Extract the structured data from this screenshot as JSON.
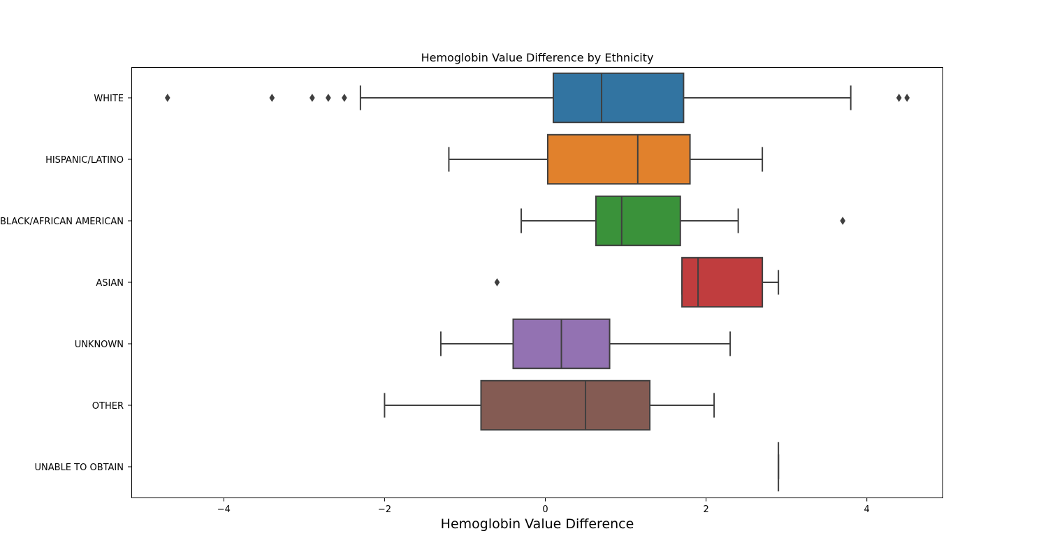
{
  "chart_data": {
    "type": "box",
    "orientation": "horizontal",
    "title": "Hemoglobin Value Difference by Ethnicity",
    "xlabel": "Hemoglobin Value Difference",
    "ylabel": "",
    "xlim": [
      -5.15,
      4.95
    ],
    "xticks": [
      -4,
      -2,
      0,
      2,
      4
    ],
    "xtick_labels": [
      "−4",
      "−2",
      "0",
      "2",
      "4"
    ],
    "grid": false,
    "categories": [
      "WHITE",
      "HISPANIC/LATINO",
      "BLACK/AFRICAN AMERICAN",
      "ASIAN",
      "UNKNOWN",
      "OTHER",
      "UNABLE TO OBTAIN"
    ],
    "boxes": [
      {
        "category": "WHITE",
        "color": "#3274a1",
        "whisker_low": -2.3,
        "q1": 0.1,
        "median": 0.7,
        "q3": 1.72,
        "whisker_high": 3.8,
        "fliers": [
          -4.7,
          -3.4,
          -2.9,
          -2.7,
          -2.5,
          4.4,
          4.5
        ]
      },
      {
        "category": "HISPANIC/LATINO",
        "color": "#e1812c",
        "whisker_low": -1.2,
        "q1": 0.03,
        "median": 1.15,
        "q3": 1.8,
        "whisker_high": 2.7,
        "fliers": []
      },
      {
        "category": "BLACK/AFRICAN AMERICAN",
        "color": "#3a923a",
        "whisker_low": -0.3,
        "q1": 0.63,
        "median": 0.95,
        "q3": 1.68,
        "whisker_high": 2.4,
        "fliers": [
          3.7
        ]
      },
      {
        "category": "ASIAN",
        "color": "#c03d3e",
        "whisker_low": 1.7,
        "q1": 1.7,
        "median": 1.9,
        "q3": 2.7,
        "whisker_high": 2.9,
        "fliers": [
          -0.6
        ]
      },
      {
        "category": "UNKNOWN",
        "color": "#9372b2",
        "whisker_low": -1.3,
        "q1": -0.4,
        "median": 0.2,
        "q3": 0.8,
        "whisker_high": 2.3,
        "fliers": []
      },
      {
        "category": "OTHER",
        "color": "#845b53",
        "whisker_low": -2.0,
        "q1": -0.8,
        "median": 0.5,
        "q3": 1.3,
        "whisker_high": 2.1,
        "fliers": []
      },
      {
        "category": "UNABLE TO OBTAIN",
        "color": "#d684bd",
        "whisker_low": 2.9,
        "q1": 2.9,
        "median": 2.9,
        "q3": 2.9,
        "whisker_high": 2.9,
        "fliers": []
      }
    ]
  }
}
